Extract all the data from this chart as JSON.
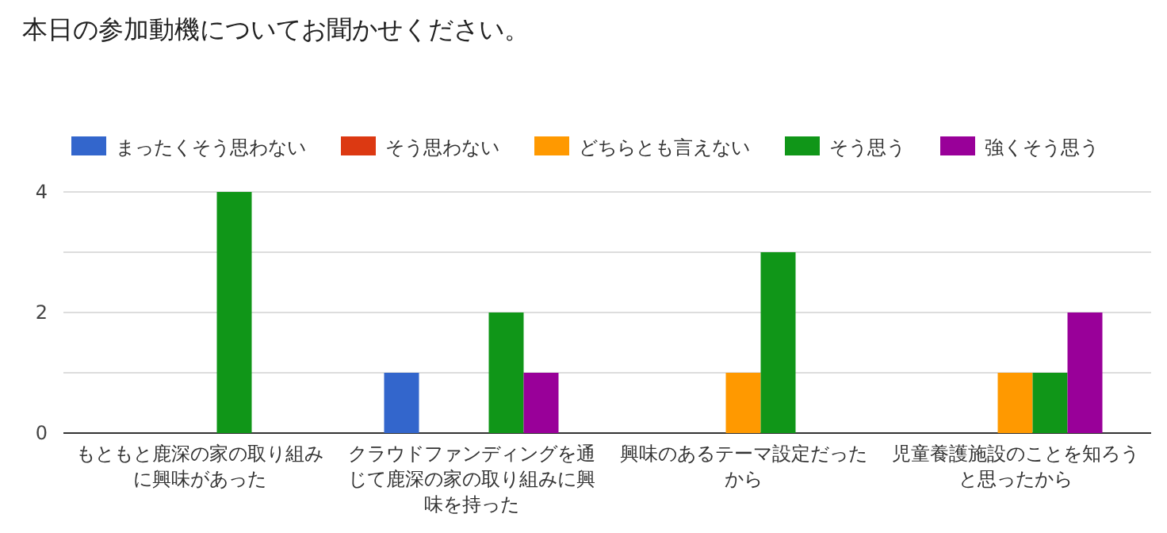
{
  "chart_data": {
    "type": "bar",
    "title": "本日の参加動機についてお聞かせください。",
    "categories": [
      "もともと鹿深の家の取り組みに興味があった",
      "クラウドファンディングを通じて鹿深の家の取り組みに興味を持った",
      "興味のあるテーマ設定だったから",
      "児童養護施設のことを知ろうと思ったから"
    ],
    "series": [
      {
        "name": "まったくそう思わない",
        "color": "#3366cc",
        "values": [
          0,
          1,
          0,
          0
        ]
      },
      {
        "name": "そう思わない",
        "color": "#dc3912",
        "values": [
          0,
          0,
          0,
          0
        ]
      },
      {
        "name": "どちらとも言えない",
        "color": "#ff9900",
        "values": [
          0,
          0,
          1,
          1
        ]
      },
      {
        "name": "そう思う",
        "color": "#109618",
        "values": [
          4,
          2,
          3,
          1
        ]
      },
      {
        "name": "強くそう思う",
        "color": "#990099",
        "values": [
          0,
          1,
          0,
          2
        ]
      }
    ],
    "ylim": [
      0,
      4
    ],
    "yticks": [
      0,
      {
        "value": 1,
        "label": null
      },
      2,
      {
        "value": 3,
        "label": null
      },
      4
    ],
    "grid": "y",
    "legend": "top left"
  }
}
